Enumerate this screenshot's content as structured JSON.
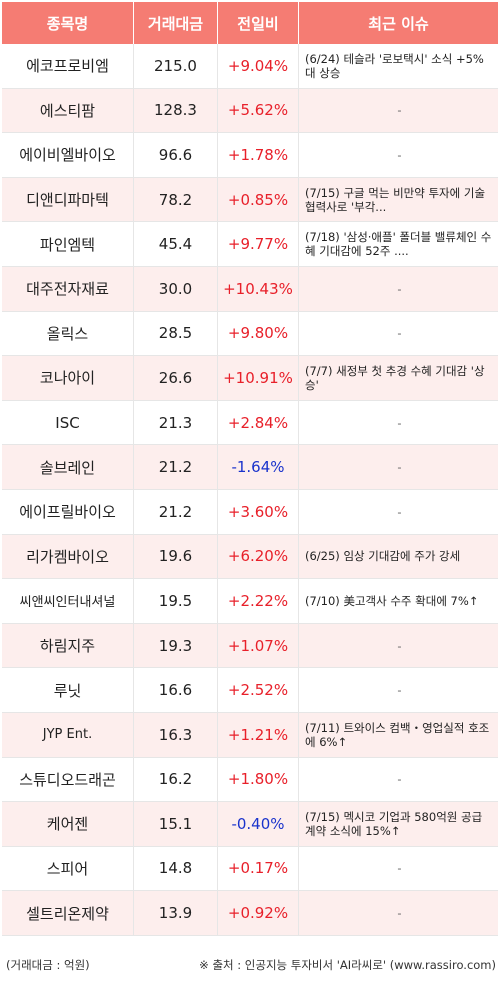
{
  "headers": {
    "name": "종목명",
    "volume": "거래대금",
    "change": "전일비",
    "issue": "최근 이슈"
  },
  "rows": [
    {
      "name": "에코프로비엠",
      "volume": "215.0",
      "change": "+9.04%",
      "dir": "up",
      "issue": "(6/24) 테슬라 '로보택시' 소식 +5%대 상승"
    },
    {
      "name": "에스티팜",
      "volume": "128.3",
      "change": "+5.62%",
      "dir": "up",
      "issue": "-"
    },
    {
      "name": "에이비엘바이오",
      "volume": "96.6",
      "change": "+1.78%",
      "dir": "up",
      "issue": "-"
    },
    {
      "name": "디앤디파마텍",
      "volume": "78.2",
      "change": "+0.85%",
      "dir": "up",
      "issue": "(7/15) 구글 먹는 비만약 투자에 기술 협력사로 '부각..."
    },
    {
      "name": "파인엠텍",
      "volume": "45.4",
      "change": "+9.77%",
      "dir": "up",
      "issue": "(7/18) '삼성·애플' 폴더블 밸류체인 수혜 기대감에 52주 ...."
    },
    {
      "name": "대주전자재료",
      "volume": "30.0",
      "change": "+10.43%",
      "dir": "up",
      "issue": "-"
    },
    {
      "name": "올릭스",
      "volume": "28.5",
      "change": "+9.80%",
      "dir": "up",
      "issue": "-"
    },
    {
      "name": "코나아이",
      "volume": "26.6",
      "change": "+10.91%",
      "dir": "up",
      "issue": "(7/7) 새정부 첫 추경 수혜 기대감 '상승'"
    },
    {
      "name": "ISC",
      "volume": "21.3",
      "change": "+2.84%",
      "dir": "up",
      "issue": "-"
    },
    {
      "name": "솔브레인",
      "volume": "21.2",
      "change": "-1.64%",
      "dir": "down",
      "issue": "-"
    },
    {
      "name": "에이프릴바이오",
      "volume": "21.2",
      "change": "+3.60%",
      "dir": "up",
      "issue": "-"
    },
    {
      "name": "리가켐바이오",
      "volume": "19.6",
      "change": "+6.20%",
      "dir": "up",
      "issue": "(6/25) 임상 기대감에 주가 강세"
    },
    {
      "name": "씨앤씨인터내셔널",
      "volume": "19.5",
      "change": "+2.22%",
      "dir": "up",
      "issue": "(7/10) 美고객사 수주 확대에 7%↑"
    },
    {
      "name": "하림지주",
      "volume": "19.3",
      "change": "+1.07%",
      "dir": "up",
      "issue": "-"
    },
    {
      "name": "루닛",
      "volume": "16.6",
      "change": "+2.52%",
      "dir": "up",
      "issue": "-"
    },
    {
      "name": "JYP Ent.",
      "volume": "16.3",
      "change": "+1.21%",
      "dir": "up",
      "issue": "(7/11) 트와이스 컴백・영업실적 호조에 6%↑"
    },
    {
      "name": "스튜디오드래곤",
      "volume": "16.2",
      "change": "+1.80%",
      "dir": "up",
      "issue": "-"
    },
    {
      "name": "케어젠",
      "volume": "15.1",
      "change": "-0.40%",
      "dir": "down",
      "issue": "(7/15) 멕시코 기업과 580억원 공급 계약 소식에 15%↑"
    },
    {
      "name": "스피어",
      "volume": "14.8",
      "change": "+0.17%",
      "dir": "up",
      "issue": "-"
    },
    {
      "name": "셀트리온제약",
      "volume": "13.9",
      "change": "+0.92%",
      "dir": "up",
      "issue": "-"
    }
  ],
  "footer": {
    "unit": "(거래대금 : 억원)",
    "source": "※ 출처 : 인공지능 투자비서 'AI라씨로' (www.rassiro.com)"
  }
}
